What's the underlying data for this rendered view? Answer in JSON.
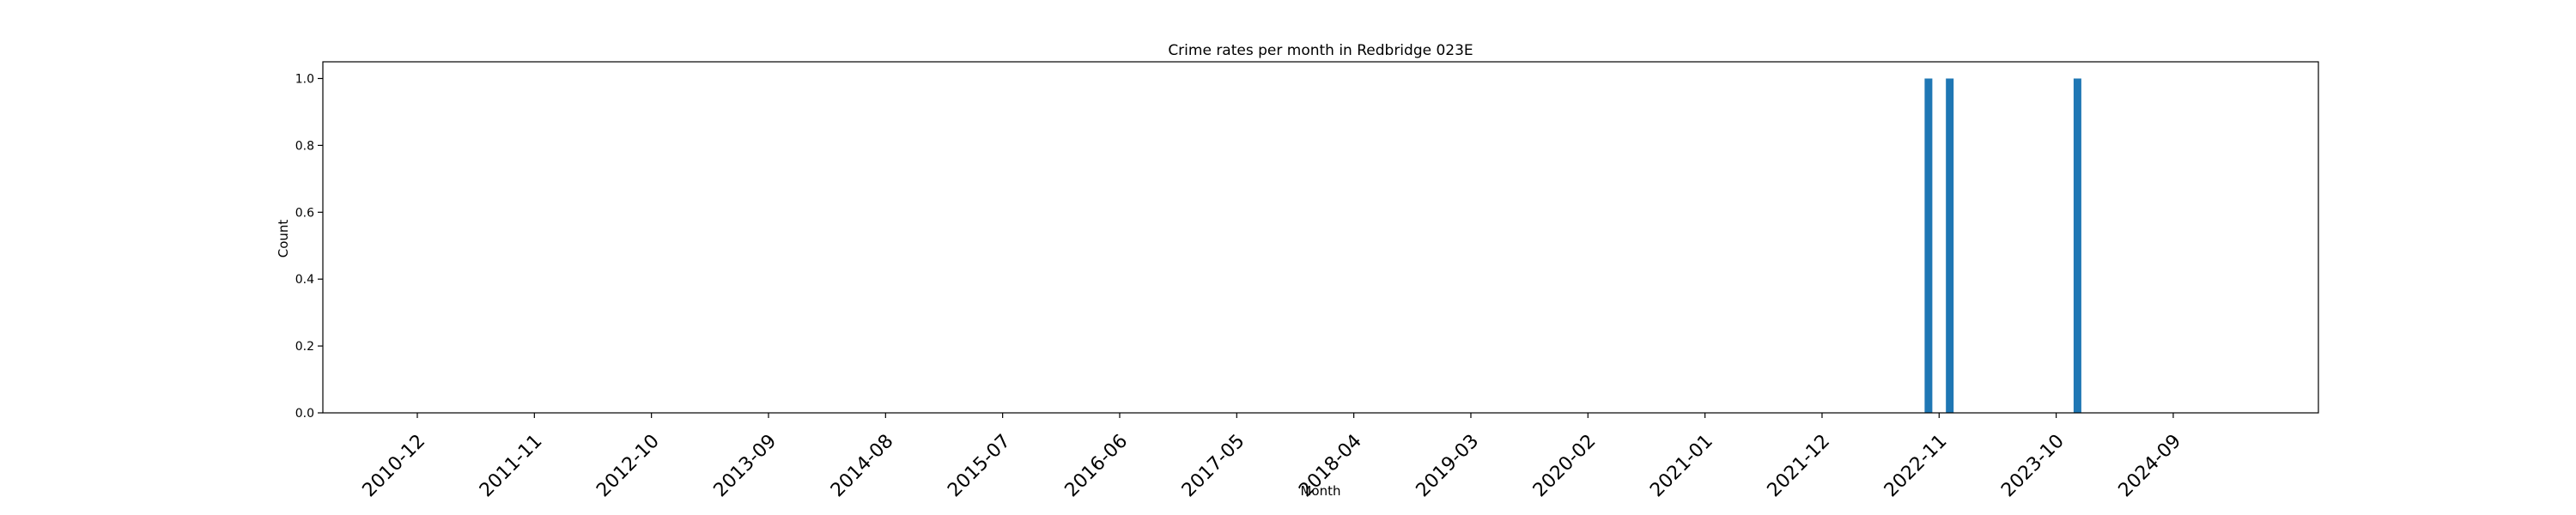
{
  "chart_data": {
    "type": "bar",
    "title": "Crime rates per month in Redbridge 023E",
    "xlabel": "Month",
    "ylabel": "Count",
    "ylim": [
      0,
      1.05
    ],
    "yticks": [
      "0.0",
      "0.2",
      "0.4",
      "0.6",
      "0.8",
      "1.0"
    ],
    "xtick_labels": [
      "2010-12",
      "2011-11",
      "2012-10",
      "2013-09",
      "2014-08",
      "2015-07",
      "2016-06",
      "2017-05",
      "2018-04",
      "2019-03",
      "2020-02",
      "2021-01",
      "2021-12",
      "2022-11",
      "2023-10",
      "2024-09"
    ],
    "categories": [
      "2022-10",
      "2022-12",
      "2023-12"
    ],
    "values": [
      1,
      1,
      1
    ],
    "bar_color": "#1f77b4",
    "grid": false
  }
}
